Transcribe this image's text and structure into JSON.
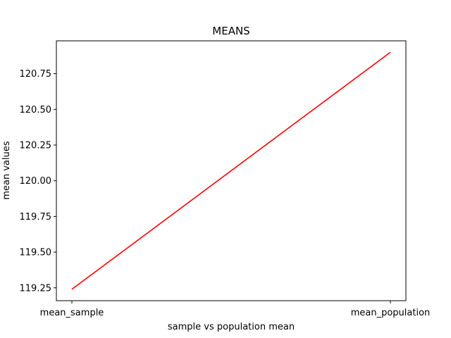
{
  "chart_data": {
    "type": "line",
    "title": "MEANS",
    "xlabel": "sample vs population mean",
    "ylabel": "mean values",
    "categories": [
      "mean_sample",
      "mean_population"
    ],
    "series": [
      {
        "values": [
          119.24,
          120.9
        ],
        "color": "#ff0000"
      }
    ],
    "ylim": [
      119.16,
      120.98
    ],
    "yticks": [
      119.25,
      119.5,
      119.75,
      120.0,
      120.25,
      120.5,
      120.75
    ],
    "ytick_labels": [
      "119.25",
      "119.50",
      "119.75",
      "120.00",
      "120.25",
      "120.50",
      "120.75"
    ],
    "grid": false,
    "legend": false
  }
}
